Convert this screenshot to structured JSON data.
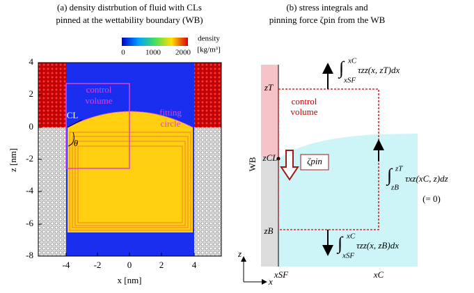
{
  "panel_a": {
    "title": [
      "(a) density distrbution of fluid with CLs",
      "pinned at the wettability boundary (WB)"
    ],
    "colorbar": {
      "label": "density",
      "unit": "[kg/m³]",
      "ticks": [
        "0",
        "1000",
        "2000"
      ]
    },
    "x_axis": {
      "label": "x [nm]",
      "ticks": [
        "-4",
        "-2",
        "0",
        "2",
        "4"
      ]
    },
    "y_axis": {
      "label": "z [nm]",
      "ticks": [
        "4",
        "2",
        "0",
        "-2",
        "-4",
        "-6",
        "-8"
      ]
    },
    "annotations": {
      "control_volume": [
        "control",
        "volume"
      ],
      "fitting_circle": [
        "fitting",
        "circle"
      ],
      "cl": "CL",
      "theta": "θ"
    }
  },
  "panel_b": {
    "title": [
      "(b) stress integrals and",
      "pinning force ζpin from the WB"
    ],
    "levels": {
      "top": "zT",
      "cl": "zCL",
      "bottom": "zB"
    },
    "wall": "WB",
    "control_volume": [
      "control",
      "volume"
    ],
    "force": "ζpin",
    "top_integral": {
      "upper": "xC",
      "lower": "xSF",
      "body": "τzz(x, zT)dx"
    },
    "side_integral": {
      "upper": "zT",
      "lower": "zB",
      "body": "τxz(xC, z)dz",
      "note": "(= 0)"
    },
    "bottom_integral": {
      "upper": "xC",
      "lower": "xSF",
      "body": "τzz(x, zB)dx"
    },
    "axes": {
      "z": "z",
      "x": "x",
      "x_sf": "xSF",
      "x_c": "xC"
    }
  }
}
